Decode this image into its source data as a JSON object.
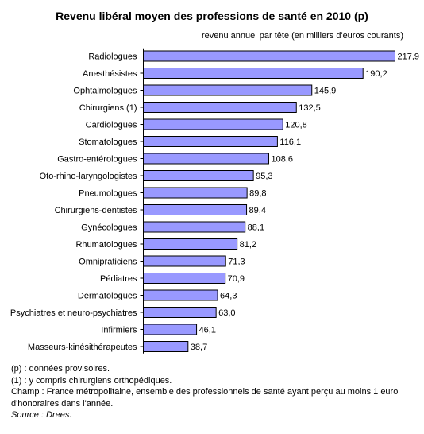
{
  "chart_data": {
    "type": "bar",
    "orientation": "horizontal",
    "title": "Revenu libéral moyen des professions de santé en 2010 (p)",
    "subtitle": "revenu annuel par tête (en milliers d'euros courants)",
    "categories": [
      "Radiologues",
      "Anesthésistes",
      "Ophtalmologues",
      "Chirurgiens (1)",
      "Cardiologues",
      "Stomatologues",
      "Gastro-entérologues",
      "Oto-rhino-laryngologistes",
      "Pneumologues",
      "Chirurgiens-dentistes",
      "Gynécologues",
      "Rhumatologues",
      "Omnipraticiens",
      "Pédiatres",
      "Dermatologues",
      "Psychiatres et neuro-psychiatres",
      "Infirmiers",
      "Masseurs-kinésithérapeutes"
    ],
    "values": [
      217.9,
      190.2,
      145.9,
      132.5,
      120.8,
      116.1,
      108.6,
      95.3,
      89.8,
      89.4,
      88.1,
      81.2,
      71.3,
      70.9,
      64.3,
      63.0,
      46.1,
      38.7
    ],
    "value_labels": [
      "217,9",
      "190,2",
      "145,9",
      "132,5",
      "120,8",
      "116,1",
      "108,6",
      "95,3",
      "89,8",
      "89,4",
      "88,1",
      "81,2",
      "71,3",
      "70,9",
      "64,3",
      "63,0",
      "46,1",
      "38,7"
    ],
    "xlim": [
      0,
      217.9
    ],
    "grid": false,
    "legend": "none",
    "bar_color": "#9999ff",
    "bar_stroke": "#000000"
  },
  "notes": [
    "(p) : données provisoires.",
    "(1) : y compris chirurgiens orthopédiques.",
    "Champ : France métropolitaine, ensemble des professionnels de santé ayant perçu au moins 1 euro",
    "d'honoraires dans l'année."
  ],
  "source": "Source : Drees."
}
